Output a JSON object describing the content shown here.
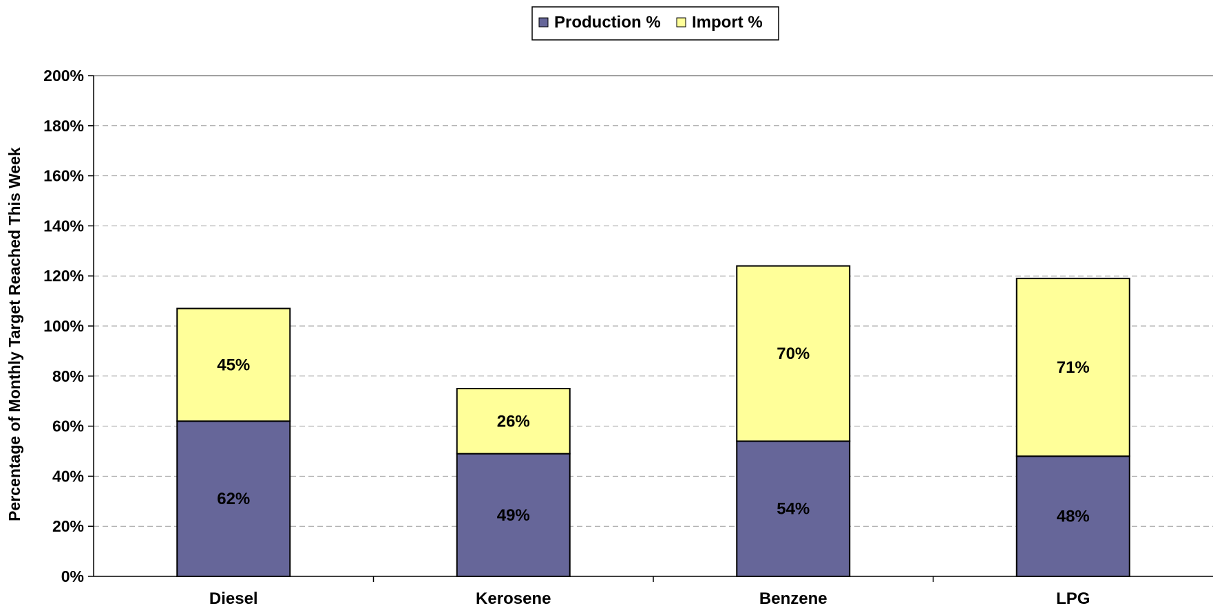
{
  "chart_data": {
    "type": "bar",
    "stacked": true,
    "categories": [
      "Diesel",
      "Kerosene",
      "Benzene",
      "LPG"
    ],
    "series": [
      {
        "name": "Production %",
        "values": [
          62,
          49,
          54,
          48
        ],
        "color": "#666699",
        "data_labels": [
          "62%",
          "49%",
          "54%",
          "48%"
        ]
      },
      {
        "name": "Import %",
        "values": [
          45,
          26,
          70,
          71
        ],
        "color": "#FFFF99",
        "data_labels": [
          "45%",
          "26%",
          "70%",
          "71%"
        ]
      }
    ],
    "title": "",
    "xlabel": "",
    "ylabel": "Percentage of Monthly Target Reached This Week",
    "ylim": [
      0,
      200
    ],
    "ytick_values": [
      0,
      20,
      40,
      60,
      80,
      100,
      120,
      140,
      160,
      180,
      200
    ],
    "ytick_labels": [
      "0%",
      "20%",
      "40%",
      "60%",
      "80%",
      "100%",
      "120%",
      "140%",
      "160%",
      "180%",
      "200%"
    ],
    "grid": true,
    "grid_style": "dashed",
    "legend_position": "top-center"
  }
}
